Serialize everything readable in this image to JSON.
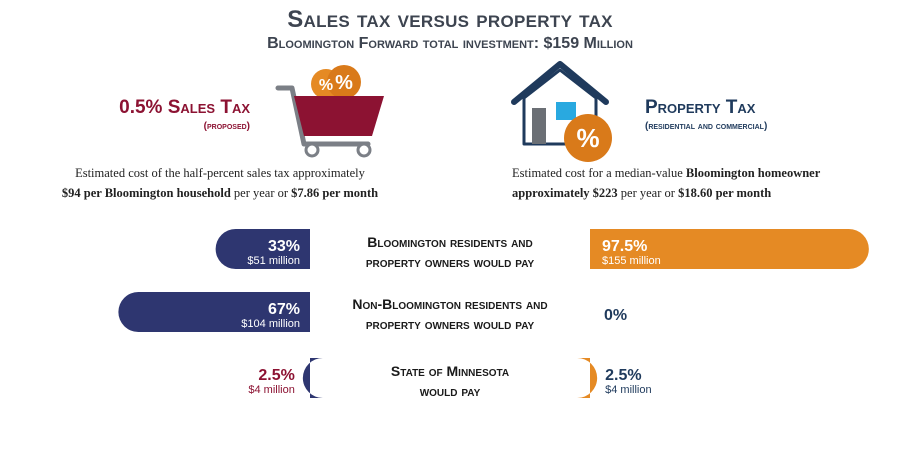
{
  "title": "Sales tax versus property tax",
  "subtitle": "Bloomington Forward total investment: $159 Million",
  "colors": {
    "sales": "#2e3670",
    "property": "#e58a24",
    "sales_accent": "#8c1232",
    "property_accent": "#1f3a5c"
  },
  "sales": {
    "title": "0.5% Sales Tax",
    "subtitle": "(proposed)",
    "desc_line1": "Estimated cost of the half-percent sales tax approximately",
    "desc_line2_bold_a": "$94 per Bloomington household",
    "desc_line2_mid": " per year or ",
    "desc_line2_bold_b": "$7.86 per month",
    "icon": "shopping-cart-percent-icon"
  },
  "property": {
    "title": "Property Tax",
    "subtitle": "(residential and commercial)",
    "desc_line1_a": "Estimated cost for a median-value ",
    "desc_line1_bold": "Bloomington homeowner",
    "desc_line2_bold_a": "approximately $223",
    "desc_line2_mid": " per year or ",
    "desc_line2_bold_b": "$18.60 per month",
    "icon": "house-percent-icon"
  },
  "chart_data": {
    "type": "bar",
    "categories": [
      "Bloomington residents and property owners would pay",
      "Non-Bloomington residents and property owners would pay",
      "State of Minnesota would pay"
    ],
    "category_lines": [
      [
        "Bloomington residents and",
        "property owners would pay"
      ],
      [
        "Non-Bloomington residents and",
        "property owners would pay"
      ],
      [
        "State of Minnesota",
        "would pay"
      ]
    ],
    "series": [
      {
        "name": "0.5% Sales Tax",
        "values": [
          33,
          67,
          2.5
        ],
        "pct_labels": [
          "33%",
          "67%",
          "2.5%"
        ],
        "amount_labels": [
          "$51 million",
          "$104 million",
          "$4 million"
        ]
      },
      {
        "name": "Property Tax",
        "values": [
          97.5,
          0,
          2.5
        ],
        "pct_labels": [
          "97.5%",
          "0%",
          "2.5%"
        ],
        "amount_labels": [
          "$155 million",
          "",
          "$4 million"
        ]
      }
    ],
    "units": "percent of total investment"
  }
}
